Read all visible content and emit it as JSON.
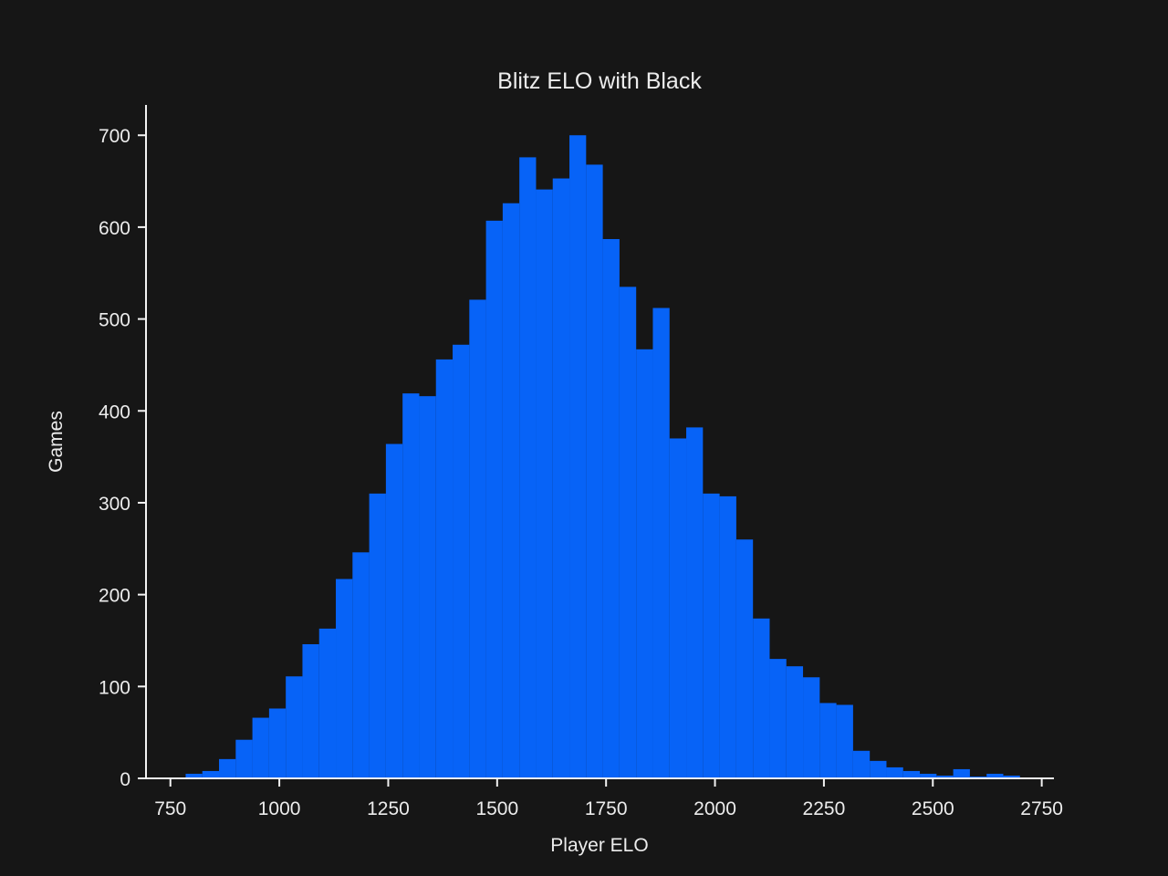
{
  "figure": {
    "background_color": "#161616",
    "text_color": "#ececec",
    "axis_color": "#f2f2f2",
    "bar_color": "#0763f7"
  },
  "chart_data": {
    "type": "bar",
    "subtype": "histogram",
    "title": "Blitz ELO with Black",
    "xlabel": "Player ELO",
    "ylabel": "Games",
    "grid": false,
    "legend_position": "none",
    "bin_start": 785,
    "bin_width": 38.3,
    "counts": [
      5,
      8,
      21,
      42,
      66,
      76,
      111,
      146,
      163,
      217,
      246,
      310,
      364,
      419,
      416,
      456,
      472,
      521,
      607,
      626,
      676,
      641,
      653,
      700,
      668,
      587,
      535,
      467,
      512,
      370,
      382,
      310,
      307,
      260,
      174,
      130,
      122,
      110,
      82,
      80,
      30,
      19,
      12,
      8,
      5,
      3,
      10,
      2,
      5,
      3,
      1
    ],
    "x_ticks": [
      750,
      1000,
      1250,
      1500,
      1750,
      2000,
      2250,
      2500,
      2750
    ],
    "y_ticks": [
      0,
      100,
      200,
      300,
      400,
      500,
      600,
      700
    ],
    "xlim": [
      694,
      2778
    ],
    "ylim": [
      0,
      733
    ]
  }
}
